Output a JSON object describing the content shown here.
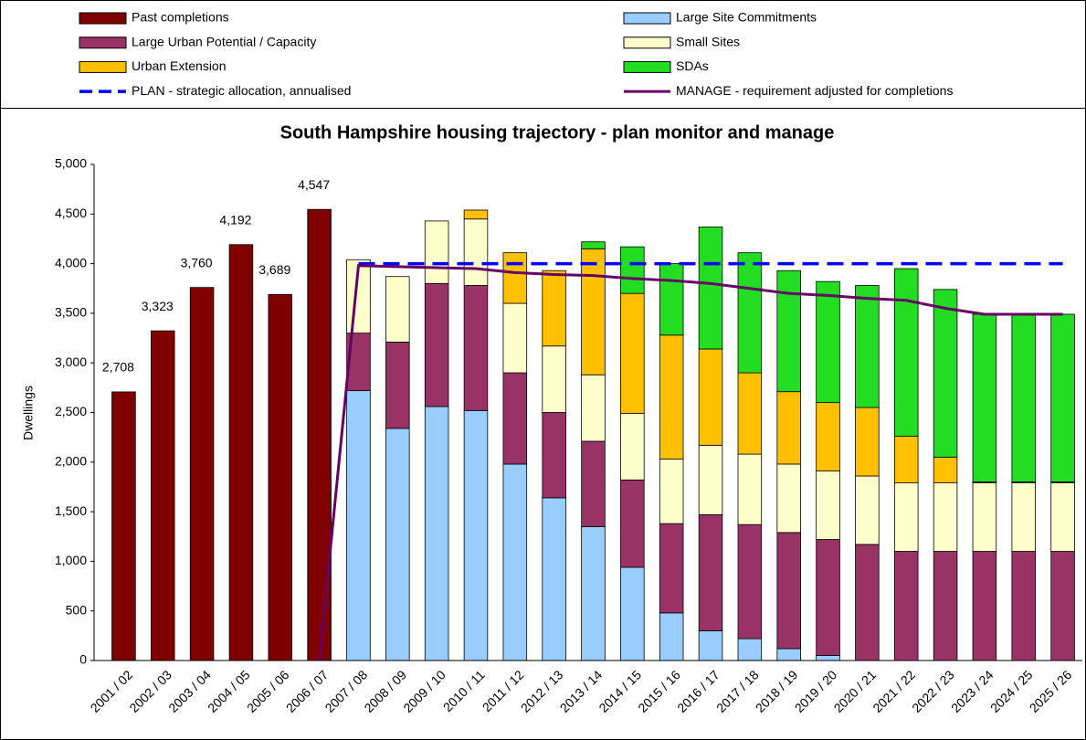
{
  "chart_data": {
    "type": "bar",
    "title": "South Hampshire housing trajectory - plan monitor and manage",
    "y_label": "Dwellings",
    "categories": [
      "2001 / 02",
      "2002 / 03",
      "2003 / 04",
      "2004 / 05",
      "2005 / 06",
      "2006 / 07",
      "2007 / 08",
      "2008 / 09",
      "2009 / 10",
      "2010 / 11",
      "2011 / 12",
      "2012 / 13",
      "2013 / 14",
      "2014 / 15",
      "2015 / 16",
      "2016 / 17",
      "2017 / 18",
      "2018 / 19",
      "2019 / 20",
      "2020 / 21",
      "2021 / 22",
      "2022 / 23",
      "2023 / 24",
      "2024 / 25",
      "2025 / 26"
    ],
    "stacked": true,
    "series": [
      {
        "name": "Past completions",
        "color": "#800000",
        "type": "bar",
        "values": [
          2708,
          3323,
          3760,
          4192,
          3689,
          4547,
          null,
          null,
          null,
          null,
          null,
          null,
          null,
          null,
          null,
          null,
          null,
          null,
          null,
          null,
          null,
          null,
          null,
          null,
          null
        ],
        "value_labels": [
          "2,708",
          "3,323",
          "3,760",
          "4,192",
          "3,689",
          "4,547",
          null,
          null,
          null,
          null,
          null,
          null,
          null,
          null,
          null,
          null,
          null,
          null,
          null,
          null,
          null,
          null,
          null,
          null,
          null
        ]
      },
      {
        "name": "Large Site Commitments",
        "color": "#99ccff",
        "type": "bar",
        "values": [
          null,
          null,
          null,
          null,
          null,
          null,
          2720,
          2340,
          2560,
          2520,
          1980,
          1640,
          1350,
          940,
          480,
          300,
          220,
          120,
          50,
          0,
          0,
          0,
          0,
          0,
          0
        ]
      },
      {
        "name": "Large Urban Potential / Capacity",
        "color": "#993366",
        "type": "bar",
        "values": [
          null,
          null,
          null,
          null,
          null,
          null,
          580,
          870,
          1240,
          1260,
          920,
          860,
          860,
          880,
          900,
          1170,
          1150,
          1170,
          1170,
          1170,
          1100,
          1100,
          1100,
          1100,
          1100
        ]
      },
      {
        "name": "Small Sites",
        "color": "#ffffcc",
        "type": "bar",
        "values": [
          null,
          null,
          null,
          null,
          null,
          null,
          740,
          660,
          630,
          670,
          700,
          670,
          670,
          670,
          650,
          700,
          710,
          690,
          690,
          690,
          690,
          690,
          690,
          690,
          690
        ]
      },
      {
        "name": "Urban Extension",
        "color": "#ffc000",
        "type": "bar",
        "values": [
          null,
          null,
          null,
          null,
          null,
          null,
          0,
          0,
          0,
          90,
          510,
          760,
          1270,
          1210,
          1250,
          970,
          820,
          730,
          690,
          690,
          470,
          260,
          10,
          10,
          10
        ]
      },
      {
        "name": "SDAs",
        "color": "#22dd22",
        "type": "bar",
        "values": [
          null,
          null,
          null,
          null,
          null,
          null,
          0,
          0,
          0,
          0,
          0,
          0,
          70,
          470,
          720,
          1230,
          1210,
          1220,
          1220,
          1230,
          1690,
          1690,
          1690,
          1690,
          1690
        ]
      },
      {
        "name": "PLAN - strategic allocation, annualised",
        "color": "#0000ff",
        "type": "line",
        "dashed": true,
        "values": [
          null,
          null,
          null,
          null,
          null,
          null,
          4000,
          4000,
          4000,
          4000,
          4000,
          4000,
          4000,
          4000,
          4000,
          4000,
          4000,
          4000,
          4000,
          4000,
          4000,
          4000,
          4000,
          4000,
          4000
        ]
      },
      {
        "name": "MANAGE - requirement adjusted for completions",
        "color": "#660066",
        "type": "line",
        "dashed": false,
        "values": [
          null,
          null,
          null,
          null,
          null,
          0,
          3980,
          3970,
          3960,
          3950,
          3910,
          3890,
          3880,
          3850,
          3830,
          3800,
          3750,
          3700,
          3680,
          3650,
          3630,
          3550,
          3490,
          3490,
          3490
        ]
      }
    ],
    "ylim": [
      0,
      5000
    ],
    "yticks": [
      0,
      500,
      {
        "value": 1000,
        "label": "1,000"
      },
      {
        "value": 1500,
        "label": "1,500"
      },
      {
        "value": 2000,
        "label": "2,000"
      },
      {
        "value": 2500,
        "label": "2,500"
      },
      {
        "value": 3000,
        "label": "3,000"
      },
      {
        "value": 3500,
        "label": "3,500"
      },
      {
        "value": 4000,
        "label": "4,000"
      },
      {
        "value": 4500,
        "label": "4,500"
      },
      {
        "value": 5000,
        "label": "5,000"
      }
    ],
    "legend": "top"
  }
}
